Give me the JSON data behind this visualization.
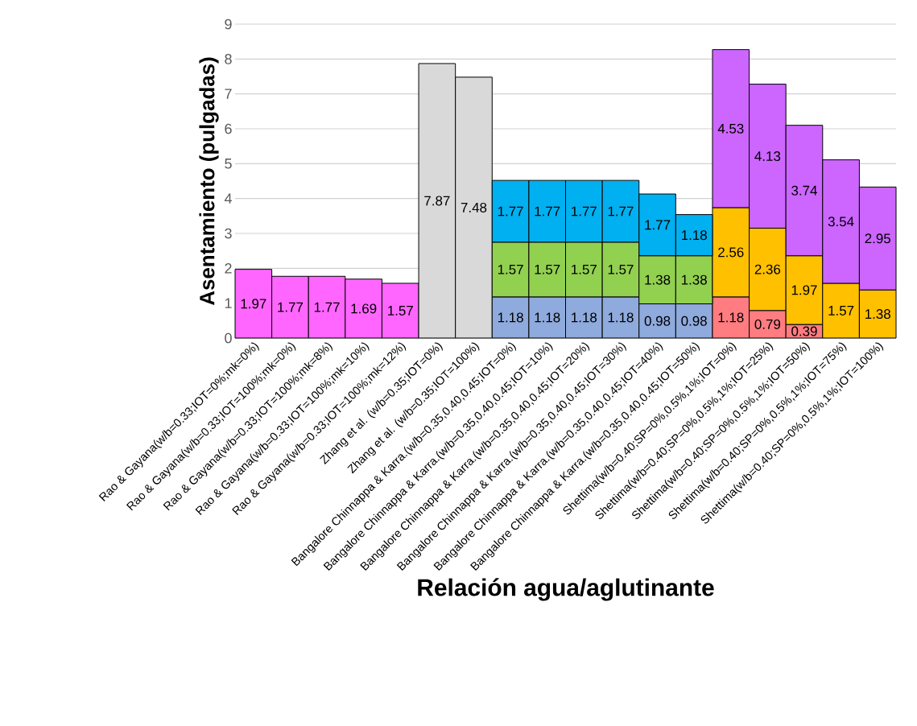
{
  "chart_data": {
    "type": "bar",
    "stacked": true,
    "xlabel": "Relación agua/aglutinante",
    "ylabel": "Asentamiento (pulgadas)",
    "categories": [
      "Rao & Gayana(w/b=0.33;IOT=0%;mk=0%)",
      "Rao & Gayana(w/b=0.33;IOT=100%;mk=0%)",
      "Rao & Gayana(w/b=0.33;IOT=100%;mk=8%)",
      "Rao & Gayana(w/b=0.33;IOT=100%;mk=10%)",
      "Rao & Gayana(w/b=0.33;IOT=100%;mk=12%)",
      "Zhang et al. (w/b=0.35;IOT=0%)",
      "Zhang et al. (w/b=0.35;IOT=100%)",
      "Bangalore Chinnappa & Karra.(w/b=0.35,0.40,0.45;IOT=0%)",
      "Bangalore Chinnappa & Karra.(w/b=0.35,0.40,0.45;IOT=10%)",
      "Bangalore Chinnappa & Karra.(w/b=0.35,0.40,0.45;IOT=20%)",
      "Bangalore Chinnappa & Karra.(w/b=0.35,0.40,0.45;IOT=30%)",
      "Bangalore Chinnappa & Karra.(w/b=0.35,0.40,0.45;IOT=40%)",
      "Bangalore Chinnappa & Karra.(w/b=0.35,0.40,0.45;IOT=50%)",
      "Shettima(w/b=0.40;SP=0%,0.5%,1%;IOT=0%)",
      "Shettima(w/b=0.40;SP=0%,0.5%,1%;IOT=25%)",
      "Shettima(w/b=0.40;SP=0%,0.5%,1%;IOT=50%)",
      "Shettima(w/b=0.40;SP=0%,0.5%,1%;IOT=75%)",
      "Shettima(w/b=0.40;SP=0%,0.5%,1%;IOT=100%)"
    ],
    "series": [
      {
        "color": "#ff66ff",
        "values": [
          1.97,
          1.77,
          1.77,
          1.69,
          1.57,
          null,
          null,
          null,
          null,
          null,
          null,
          null,
          null,
          null,
          null,
          null,
          null,
          null
        ]
      },
      {
        "color": "#d9d9d9",
        "values": [
          null,
          null,
          null,
          null,
          null,
          7.87,
          7.48,
          null,
          null,
          null,
          null,
          null,
          null,
          null,
          null,
          null,
          null,
          null
        ]
      },
      {
        "color": "#8faadc",
        "values": [
          null,
          null,
          null,
          null,
          null,
          null,
          null,
          1.18,
          1.18,
          1.18,
          1.18,
          0.98,
          0.98,
          null,
          null,
          null,
          null,
          null
        ]
      },
      {
        "color": "#ff7c80",
        "values": [
          null,
          null,
          null,
          null,
          null,
          null,
          null,
          null,
          null,
          null,
          null,
          null,
          null,
          1.18,
          0.79,
          0.39,
          null,
          null
        ]
      },
      {
        "color": "#92d050",
        "values": [
          null,
          null,
          null,
          null,
          null,
          null,
          null,
          1.57,
          1.57,
          1.57,
          1.57,
          1.38,
          1.38,
          null,
          null,
          null,
          null,
          null
        ]
      },
      {
        "color": "#ffc000",
        "values": [
          null,
          null,
          null,
          null,
          null,
          null,
          null,
          null,
          null,
          null,
          null,
          null,
          null,
          2.56,
          2.36,
          1.97,
          1.57,
          1.38
        ]
      },
      {
        "color": "#00b0f0",
        "values": [
          null,
          null,
          null,
          null,
          null,
          null,
          null,
          1.77,
          1.77,
          1.77,
          1.77,
          1.77,
          1.18,
          null,
          null,
          null,
          null,
          null
        ]
      },
      {
        "color": "#cc66ff",
        "values": [
          null,
          null,
          null,
          null,
          null,
          null,
          null,
          null,
          null,
          null,
          null,
          null,
          null,
          4.53,
          4.13,
          3.74,
          3.54,
          2.95
        ]
      }
    ],
    "ylim": [
      0,
      9
    ],
    "yticks": [
      0,
      1,
      2,
      3,
      4,
      5,
      6,
      7,
      8,
      9
    ],
    "grid": "y",
    "data_labels": true
  }
}
